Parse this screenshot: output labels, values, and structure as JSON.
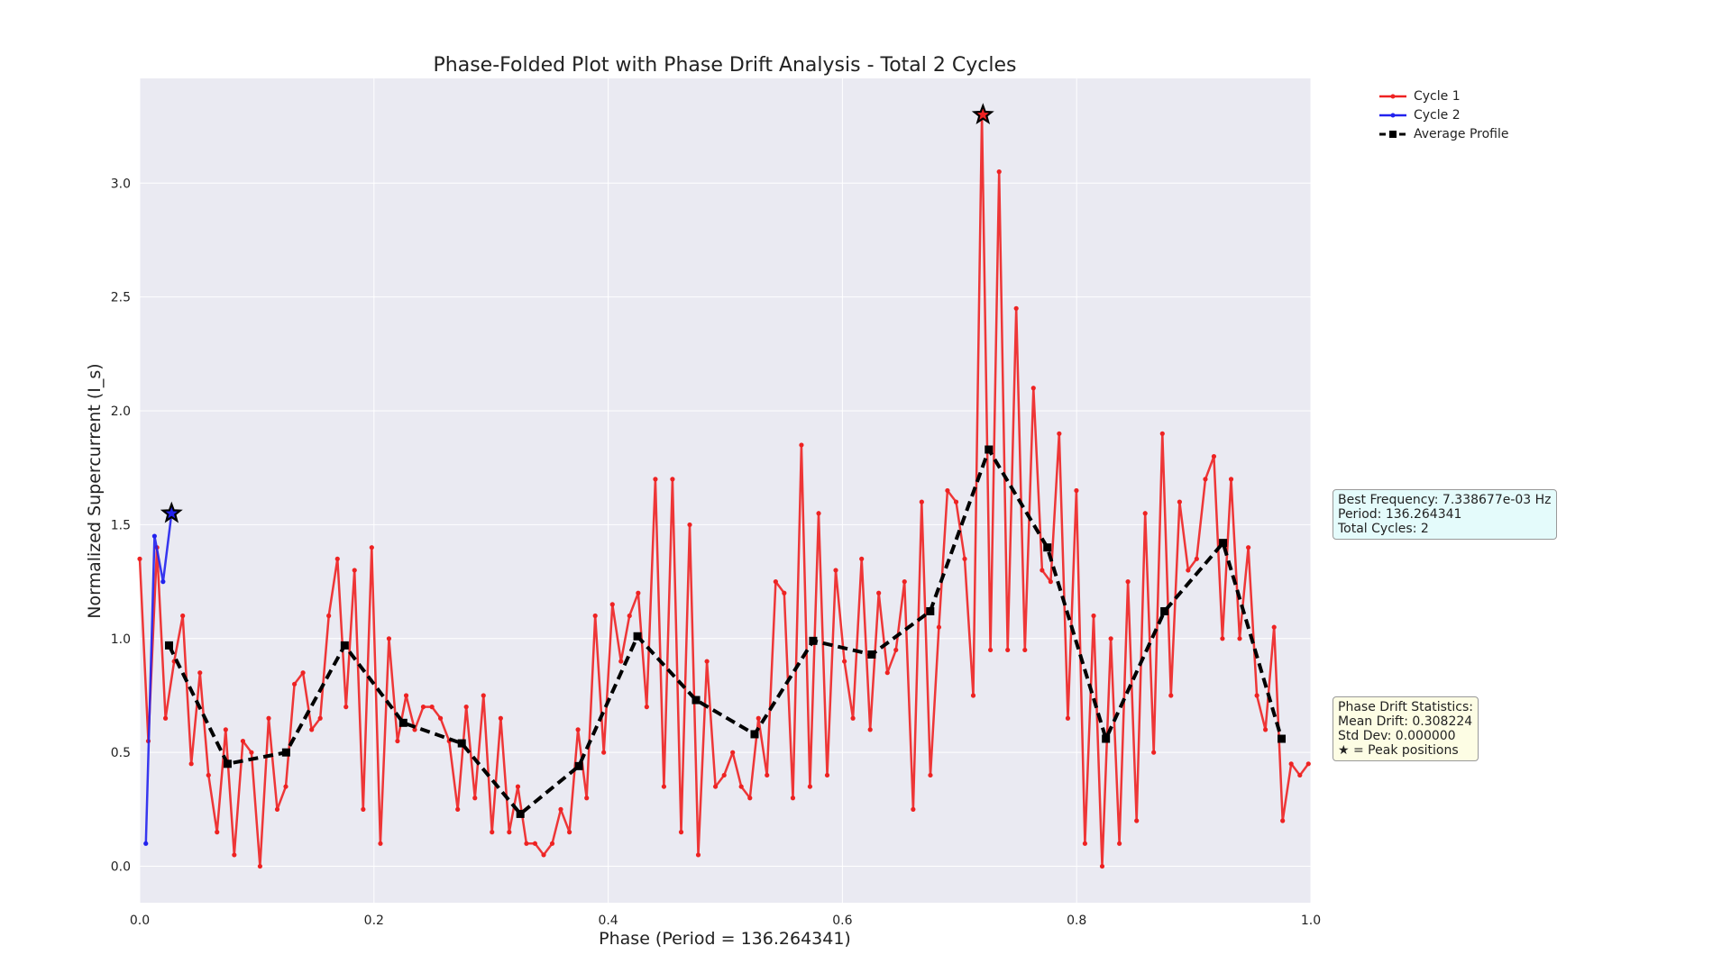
{
  "chart_data": {
    "type": "line",
    "title": "Phase-Folded Plot with Phase Drift Analysis - Total 2 Cycles",
    "xlabel": "Phase (Period = 136.264341)",
    "ylabel": "Normalized Supercurrent (I_s)",
    "xlim": [
      0.0,
      1.0
    ],
    "ylim": [
      -0.16,
      3.46
    ],
    "xticks": [
      "0.0",
      "0.2",
      "0.4",
      "0.6",
      "0.8",
      "1.0"
    ],
    "yticks": [
      "0.0",
      "0.5",
      "1.0",
      "1.5",
      "2.0",
      "2.5",
      "3.0"
    ],
    "grid": true,
    "legend_position": "top-right outside",
    "series": [
      {
        "name": "Cycle 1",
        "color": "#ee2222",
        "marker": "dot",
        "x": [
          0.0,
          0.0073,
          0.0147,
          0.022,
          0.0294,
          0.0367,
          0.044,
          0.0514,
          0.0587,
          0.066,
          0.0734,
          0.0807,
          0.0881,
          0.0954,
          0.1027,
          0.1101,
          0.1174,
          0.1247,
          0.1321,
          0.1394,
          0.1468,
          0.1541,
          0.1614,
          0.1688,
          0.1761,
          0.1834,
          0.1908,
          0.1981,
          0.2055,
          0.2128,
          0.2201,
          0.2275,
          0.2348,
          0.2421,
          0.2495,
          0.2568,
          0.2642,
          0.2715,
          0.2788,
          0.2862,
          0.2935,
          0.3008,
          0.3082,
          0.3155,
          0.3229,
          0.3302,
          0.3375,
          0.3449,
          0.3522,
          0.3595,
          0.3669,
          0.3742,
          0.3816,
          0.3889,
          0.3962,
          0.4036,
          0.4109,
          0.4182,
          0.4256,
          0.4329,
          0.4403,
          0.4476,
          0.4549,
          0.4623,
          0.4696,
          0.4769,
          0.4843,
          0.4916,
          0.499,
          0.5063,
          0.5136,
          0.521,
          0.5283,
          0.5356,
          0.543,
          0.5503,
          0.5577,
          0.565,
          0.5723,
          0.5797,
          0.587,
          0.5943,
          0.6017,
          0.609,
          0.6164,
          0.6237,
          0.631,
          0.6384,
          0.6457,
          0.653,
          0.6604,
          0.6677,
          0.6751,
          0.6824,
          0.6897,
          0.6971,
          0.7044,
          0.7117,
          0.7191,
          0.7264,
          0.7338,
          0.7411,
          0.7484,
          0.7558,
          0.7631,
          0.7705,
          0.7778,
          0.7851,
          0.7925,
          0.7998,
          0.8071,
          0.8145,
          0.8218,
          0.8292,
          0.8365,
          0.8438,
          0.8512,
          0.8585,
          0.8658,
          0.8732,
          0.8805,
          0.8879,
          0.8952,
          0.9025,
          0.9099,
          0.9172,
          0.9245,
          0.9319,
          0.9392,
          0.9466,
          0.9539,
          0.9612,
          0.9686,
          0.9759,
          0.9832,
          0.9906,
          0.9979
        ],
        "y": [
          1.35,
          0.55,
          1.4,
          0.65,
          0.9,
          1.1,
          0.45,
          0.85,
          0.4,
          0.15,
          0.6,
          0.05,
          0.55,
          0.5,
          0.0,
          0.65,
          0.25,
          0.35,
          0.8,
          0.85,
          0.6,
          0.65,
          1.1,
          1.35,
          0.7,
          1.3,
          0.25,
          1.4,
          0.1,
          1.0,
          0.55,
          0.75,
          0.6,
          0.7,
          0.7,
          0.65,
          0.55,
          0.25,
          0.7,
          0.3,
          0.75,
          0.15,
          0.65,
          0.15,
          0.35,
          0.1,
          0.1,
          0.05,
          0.1,
          0.25,
          0.15,
          0.6,
          0.3,
          1.1,
          0.5,
          1.15,
          0.9,
          1.1,
          1.2,
          0.7,
          1.7,
          0.35,
          1.7,
          0.15,
          1.5,
          0.05,
          0.9,
          0.35,
          0.4,
          0.5,
          0.35,
          0.3,
          0.65,
          0.4,
          1.25,
          1.2,
          0.3,
          1.85,
          0.35,
          1.55,
          0.4,
          1.3,
          0.9,
          0.65,
          1.35,
          0.6,
          1.2,
          0.85,
          0.95,
          1.25,
          0.25,
          1.6,
          0.4,
          1.05,
          1.65,
          1.6,
          1.35,
          0.75,
          3.3,
          0.95,
          3.05,
          0.95,
          2.45,
          0.95,
          2.1,
          1.3,
          1.25,
          1.9,
          0.65,
          1.65,
          0.1,
          1.1,
          0.0,
          1.0,
          0.1,
          1.25,
          0.2,
          1.55,
          0.5,
          1.9,
          0.75,
          1.6,
          1.3,
          1.35,
          1.7,
          1.8,
          1.0,
          1.7,
          1.0,
          1.4,
          0.75,
          0.6,
          1.05,
          0.2,
          0.45,
          0.4,
          0.45
        ]
      },
      {
        "name": "Cycle 2",
        "color": "#2222ee",
        "marker": "dot",
        "x": [
          0.0052,
          0.0126,
          0.0199,
          0.0272
        ],
        "y": [
          0.1,
          1.45,
          1.25,
          1.55
        ]
      },
      {
        "name": "Average Profile",
        "color": "#000000",
        "marker": "square",
        "style": "dashed",
        "x": [
          0.025,
          0.075,
          0.125,
          0.175,
          0.225,
          0.275,
          0.325,
          0.375,
          0.425,
          0.475,
          0.525,
          0.575,
          0.625,
          0.675,
          0.725,
          0.775,
          0.825,
          0.875,
          0.925,
          0.975
        ],
        "y": [
          0.97,
          0.45,
          0.5,
          0.97,
          0.63,
          0.54,
          0.23,
          0.44,
          1.01,
          0.73,
          0.58,
          0.99,
          0.93,
          1.12,
          1.83,
          1.4,
          0.56,
          1.12,
          1.42,
          0.56
        ]
      }
    ],
    "peaks": [
      {
        "series": "Cycle 1",
        "x": 0.72,
        "y": 3.3
      },
      {
        "series": "Cycle 2",
        "x": 0.0272,
        "y": 1.55
      }
    ],
    "annotations": {
      "frequency_box": [
        "Best Frequency: 7.338677e-03 Hz",
        "Period: 136.264341",
        "Total Cycles: 2"
      ],
      "drift_box": [
        "Phase Drift Statistics:",
        "Mean Drift: 0.308224",
        "Std Dev: 0.000000",
        "★ = Peak positions"
      ]
    }
  }
}
